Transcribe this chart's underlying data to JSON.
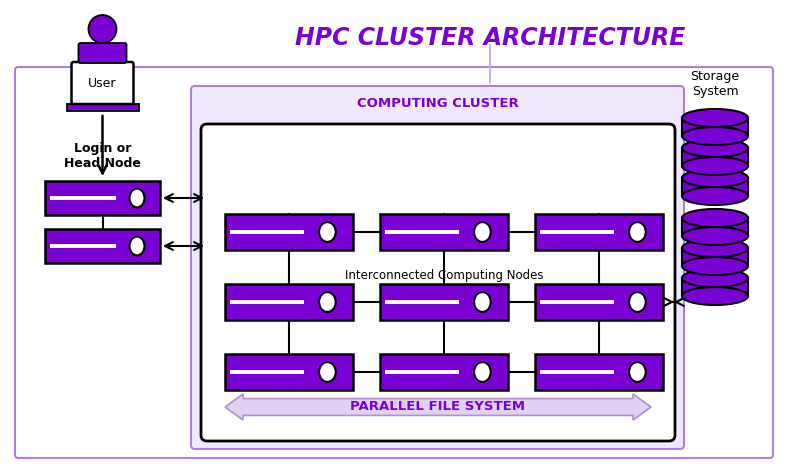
{
  "title": "HPC CLUSTER ARCHITECTURE",
  "title_color": "#7B00D4",
  "title_fontsize": 17,
  "bg_color": "#ffffff",
  "purple": "#7B00D4",
  "light_purple": "#DDD0F0",
  "node_purple": "#7B00D4",
  "computing_cluster_label": "COMPUTING CLUSTER",
  "parallel_fs_label": "PARALLEL FILE SYSTEM",
  "interconnected_label": "Interconnected Computing Nodes",
  "login_label": "Login or\nHead Node",
  "storage_label": "Storage\nSystem",
  "user_label": "User"
}
